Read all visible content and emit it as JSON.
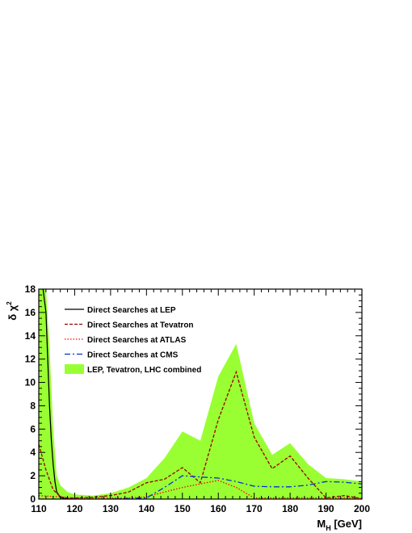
{
  "chart_data": {
    "type": "line",
    "title": "",
    "xlabel": {
      "main": "M",
      "sub": "H",
      "unit": " [GeV]"
    },
    "ylabel": {
      "main": "δ χ",
      "sup": "2"
    },
    "xlim": [
      110,
      200
    ],
    "ylim": [
      0,
      18
    ],
    "x_ticks": [
      "110",
      "120",
      "130",
      "140",
      "150",
      "160",
      "170",
      "180",
      "190",
      "200"
    ],
    "y_ticks": [
      "0",
      "2",
      "4",
      "6",
      "8",
      "10",
      "12",
      "14",
      "16",
      "18"
    ],
    "grid": false,
    "legend_position": "top-left",
    "band": {
      "name": "LEP, Tevatron, LHC combined",
      "color": "#99ff33",
      "points": [
        [
          110,
          18
        ],
        [
          112,
          18
        ],
        [
          113,
          13
        ],
        [
          114,
          6
        ],
        [
          115,
          2
        ],
        [
          116,
          1.2
        ],
        [
          118,
          0.6
        ],
        [
          120,
          0.4
        ],
        [
          125,
          0.3
        ],
        [
          130,
          0.5
        ],
        [
          135,
          1
        ],
        [
          140,
          1.8
        ],
        [
          145,
          3.5
        ],
        [
          150,
          5.8
        ],
        [
          155,
          5
        ],
        [
          160,
          10.5
        ],
        [
          165,
          13.3
        ],
        [
          170,
          6.5
        ],
        [
          175,
          3.8
        ],
        [
          180,
          4.8
        ],
        [
          185,
          3
        ],
        [
          190,
          1.8
        ],
        [
          195,
          1.7
        ],
        [
          200,
          1.5
        ],
        [
          200,
          0
        ],
        [
          110,
          0
        ]
      ]
    },
    "series": [
      {
        "name": "Direct Searches at LEP",
        "color": "#000000",
        "dash": "solid",
        "x": [
          111.2,
          112,
          112.5,
          113,
          113.5,
          114,
          114.5,
          115,
          116,
          117,
          118,
          120
        ],
        "y": [
          18,
          16,
          12,
          8,
          5,
          3,
          1.5,
          0.6,
          0.15,
          0.05,
          0.02,
          0
        ]
      },
      {
        "name": "Direct Searches at Tevatron",
        "color": "#990000",
        "dash": "dashed",
        "x": [
          110,
          112,
          114,
          116,
          118,
          120,
          125,
          130,
          135,
          140,
          145,
          150,
          155,
          160,
          165,
          170,
          175,
          180,
          185,
          190,
          195,
          200
        ],
        "y": [
          4.7,
          2.5,
          0.8,
          0.2,
          0.1,
          0.1,
          0.15,
          0.3,
          0.6,
          1.4,
          1.7,
          2.7,
          1.4,
          6.8,
          10.9,
          5.3,
          2.6,
          3.7,
          1.8,
          0.1,
          0.3,
          0.05
        ]
      },
      {
        "name": "Direct Searches at ATLAS",
        "color": "#ff0000",
        "dash": "dotted",
        "x": [
          110,
          115,
          120,
          125,
          130,
          135,
          140,
          145,
          150,
          155,
          160,
          165,
          170,
          175,
          180,
          185,
          190,
          195,
          200
        ],
        "y": [
          0.3,
          0.2,
          0.1,
          0.1,
          0.1,
          0.1,
          0.2,
          0.6,
          1.0,
          1.3,
          1.6,
          1.0,
          0.1,
          0.1,
          0.1,
          0.1,
          0.1,
          0.1,
          0.1
        ]
      },
      {
        "name": "Direct Searches at CMS",
        "color": "#0033cc",
        "dash": "dashdot",
        "x": [
          110,
          120,
          130,
          140,
          145,
          150,
          155,
          160,
          165,
          170,
          175,
          180,
          185,
          190,
          195,
          200
        ],
        "y": [
          0,
          0,
          0,
          0.1,
          1.0,
          2.0,
          1.9,
          1.8,
          1.5,
          1.1,
          1.05,
          1.05,
          1.2,
          1.5,
          1.45,
          1.3
        ]
      }
    ]
  }
}
